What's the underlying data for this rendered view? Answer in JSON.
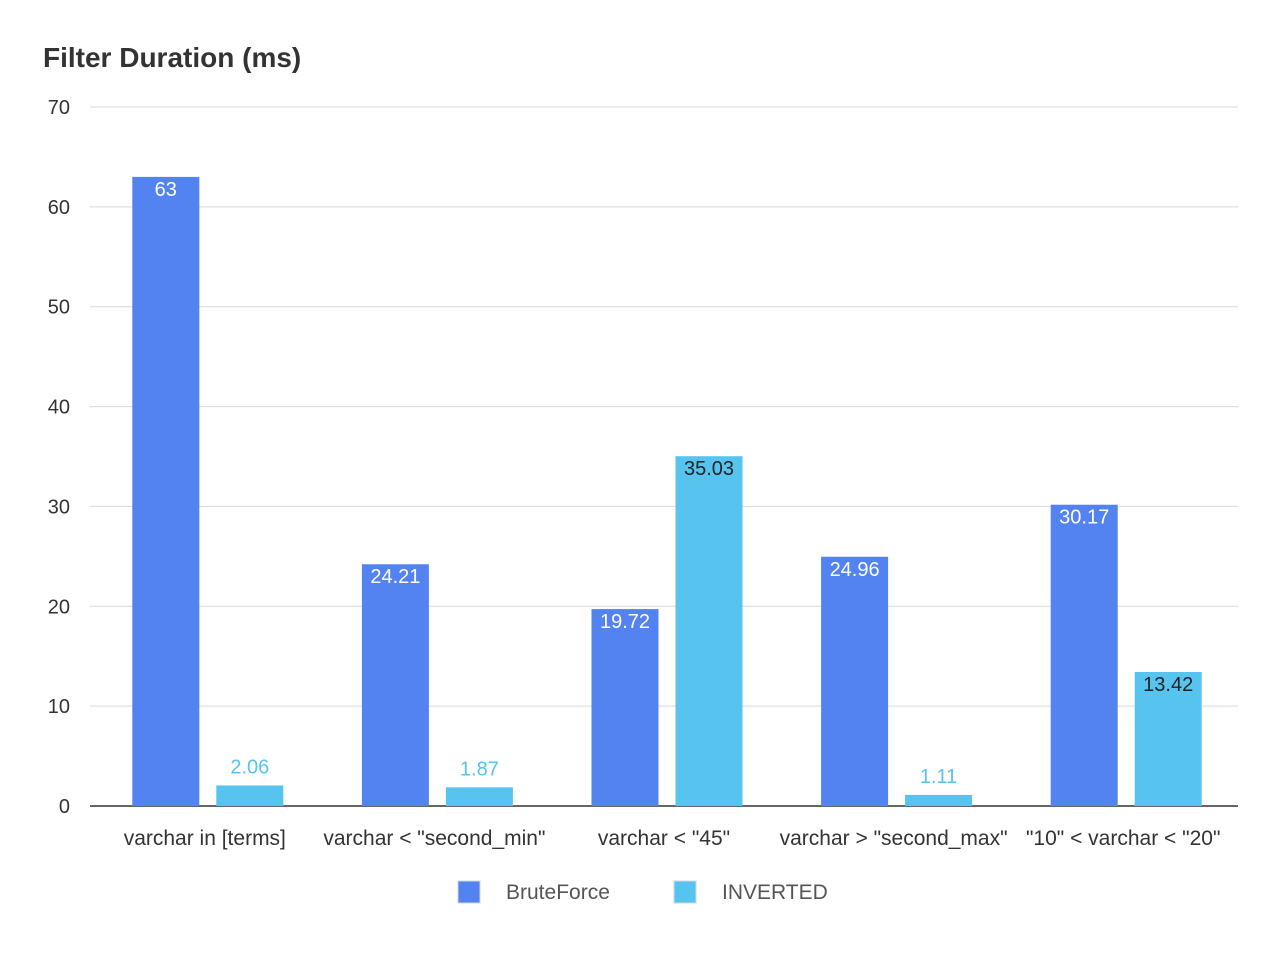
{
  "chart_data": {
    "type": "bar",
    "title": "Filter Duration (ms)",
    "xlabel": "",
    "ylabel": "",
    "ylim": [
      0,
      70
    ],
    "yticks": [
      0,
      10,
      20,
      30,
      40,
      50,
      60,
      70
    ],
    "grid": true,
    "legend_position": "bottom-center",
    "categories": [
      "varchar in [terms]",
      "varchar < \"second_min\"",
      "varchar < \"45\"",
      "varchar > \"second_max\"",
      "\"10\" < varchar < \"20\""
    ],
    "series": [
      {
        "name": "BruteForce",
        "color": "#5283f0",
        "values": [
          63,
          24.21,
          19.72,
          24.96,
          30.17
        ],
        "labels": [
          "63",
          "24.21",
          "19.72",
          "24.96",
          "30.17"
        ]
      },
      {
        "name": "INVERTED",
        "color": "#57c4f0",
        "values": [
          2.06,
          1.87,
          35.03,
          1.11,
          13.42
        ],
        "labels": [
          "2.06",
          "1.87",
          "35.03",
          "1.11",
          "13.42"
        ]
      }
    ]
  }
}
